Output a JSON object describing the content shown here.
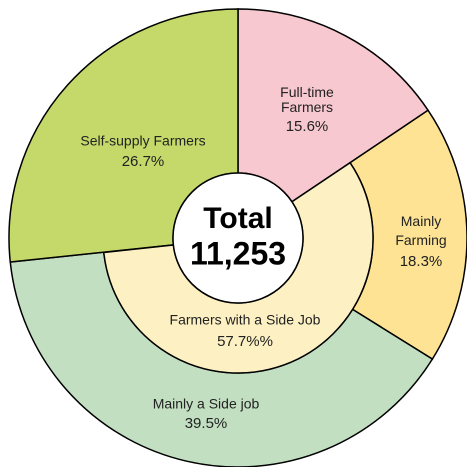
{
  "chart_data": {
    "type": "nested-donut",
    "center": {
      "title": "Total",
      "value": 11253,
      "label": "11,253"
    },
    "outer": {
      "categories": [
        "Full-time Farmers",
        "Mainly Farming",
        "Mainly a Side job",
        "Self-supply Farmers"
      ],
      "values": [
        15.6,
        18.3,
        39.5,
        26.7
      ],
      "value_labels": [
        "15.6%",
        "18.3%",
        "39.5%",
        "26.7%"
      ],
      "colors": [
        "#f7c8cf",
        "#fde393",
        "#c2dfc2",
        "#c5d96b"
      ]
    },
    "inner": {
      "name": "Farmers with a Side Job",
      "value": 57.7,
      "value_label": "57.7%%",
      "color": "#fdf1c3"
    }
  }
}
